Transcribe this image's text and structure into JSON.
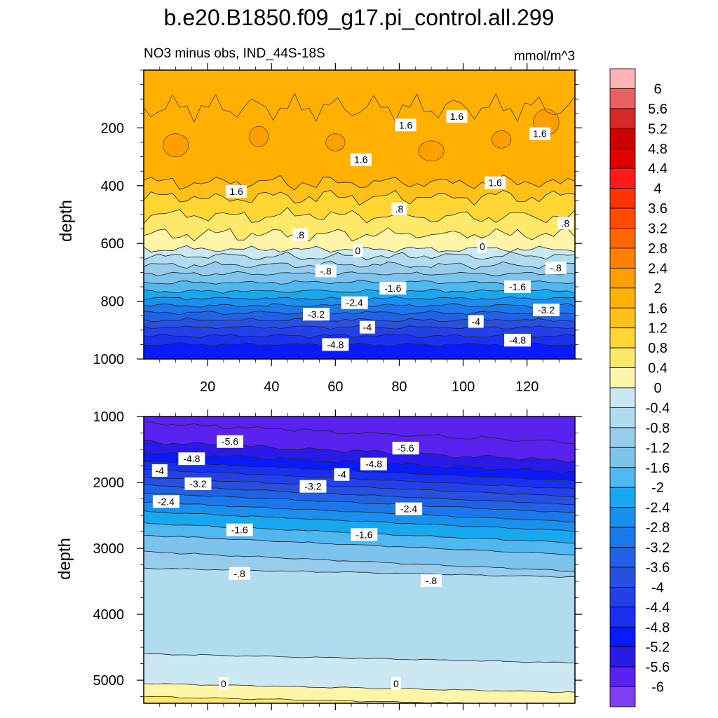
{
  "title": "b.e20.B1850.f09_g17.pi_control.all.299",
  "subtitle_left": "NO3 minus obs, IND_44S-18S",
  "subtitle_right": "mmol/m^3",
  "chart_data": [
    {
      "type": "heatmap",
      "panel": "upper",
      "ylabel": "depth",
      "xlabel": "",
      "xlim": [
        0,
        135
      ],
      "ylim": [
        1000,
        0
      ],
      "x_ticks": [
        "20",
        "40",
        "60",
        "80",
        "100",
        "120"
      ],
      "y_ticks": [
        "200",
        "400",
        "600",
        "800",
        "1000"
      ],
      "contour_levels_depth": [
        {
          "level": 1.6,
          "depth": 390
        },
        {
          "level": 1.2,
          "depth": 440
        },
        {
          "level": 0.8,
          "depth": 505
        },
        {
          "level": 0.4,
          "depth": 570
        },
        {
          "level": 0,
          "depth": 620
        },
        {
          "level": -0.4,
          "depth": 645
        },
        {
          "level": -0.8,
          "depth": 675
        },
        {
          "level": -1.2,
          "depth": 705
        },
        {
          "level": -1.6,
          "depth": 735
        },
        {
          "level": -2.0,
          "depth": 765
        },
        {
          "level": -2.4,
          "depth": 790
        },
        {
          "level": -2.8,
          "depth": 815
        },
        {
          "level": -3.2,
          "depth": 840
        },
        {
          "level": -3.6,
          "depth": 865
        },
        {
          "level": -4.0,
          "depth": 890
        },
        {
          "level": -4.4,
          "depth": 920
        },
        {
          "level": -4.8,
          "depth": 950
        }
      ],
      "labels": [
        {
          "text": "1.6",
          "x": 29,
          "depth": 420
        },
        {
          "text": "1.6",
          "x": 68,
          "depth": 310
        },
        {
          "text": "1.6",
          "x": 82,
          "depth": 190
        },
        {
          "text": "1.6",
          "x": 98,
          "depth": 160
        },
        {
          "text": "1.6",
          "x": 110,
          "depth": 390
        },
        {
          "text": "1.6",
          "x": 124,
          "depth": 220
        },
        {
          "text": ".8",
          "x": 49,
          "depth": 570
        },
        {
          "text": ".8",
          "x": 80,
          "depth": 480
        },
        {
          "text": ".8",
          "x": 132,
          "depth": 530
        },
        {
          "text": "0",
          "x": 67,
          "depth": 625
        },
        {
          "text": "0",
          "x": 106,
          "depth": 610
        },
        {
          "text": "-.8",
          "x": 57,
          "depth": 695
        },
        {
          "text": "-.8",
          "x": 129,
          "depth": 685
        },
        {
          "text": "-1.6",
          "x": 78,
          "depth": 755
        },
        {
          "text": "-1.6",
          "x": 117,
          "depth": 750
        },
        {
          "text": "-2.4",
          "x": 66,
          "depth": 805
        },
        {
          "text": "-3.2",
          "x": 54,
          "depth": 845
        },
        {
          "text": "-3.2",
          "x": 126,
          "depth": 830
        },
        {
          "text": "-4",
          "x": 70,
          "depth": 890
        },
        {
          "text": "-4",
          "x": 104,
          "depth": 870
        },
        {
          "text": "-4.8",
          "x": 60,
          "depth": 950
        },
        {
          "text": "-4.8",
          "x": 117,
          "depth": 935
        }
      ]
    },
    {
      "type": "heatmap",
      "panel": "lower",
      "ylabel": "depth",
      "xlabel": "",
      "xlim": [
        0,
        135
      ],
      "ylim": [
        5350,
        1000
      ],
      "y_ticks": [
        "1000",
        "2000",
        "3000",
        "4000",
        "5000"
      ],
      "contour_levels_depth": [
        {
          "level": -6.0,
          "depth": 1100
        },
        {
          "level": -5.6,
          "depth": 1380
        },
        {
          "level": -5.2,
          "depth": 1550
        },
        {
          "level": -4.8,
          "depth": 1680
        },
        {
          "level": -4.4,
          "depth": 1800
        },
        {
          "level": -4.0,
          "depth": 1920
        },
        {
          "level": -3.6,
          "depth": 2040
        },
        {
          "level": -3.2,
          "depth": 2160
        },
        {
          "level": -2.8,
          "depth": 2300
        },
        {
          "level": -2.4,
          "depth": 2440
        },
        {
          "level": -2.0,
          "depth": 2620
        },
        {
          "level": -1.6,
          "depth": 2800
        },
        {
          "level": -1.2,
          "depth": 3050
        },
        {
          "level": -0.8,
          "depth": 3300
        },
        {
          "level": -0.4,
          "depth": 4600
        },
        {
          "level": 0.0,
          "depth": 5050
        },
        {
          "level": 0.4,
          "depth": 5250
        }
      ],
      "labels": [
        {
          "text": "-5.6",
          "x": 27,
          "depth": 1380
        },
        {
          "text": "-5.6",
          "x": 82,
          "depth": 1480
        },
        {
          "text": "-4.8",
          "x": 15,
          "depth": 1640
        },
        {
          "text": "-4.8",
          "x": 72,
          "depth": 1720
        },
        {
          "text": "-4",
          "x": 5,
          "depth": 1820
        },
        {
          "text": "-4",
          "x": 62,
          "depth": 1880
        },
        {
          "text": "-3.2",
          "x": 17,
          "depth": 2020
        },
        {
          "text": "-3.2",
          "x": 53,
          "depth": 2060
        },
        {
          "text": "-2.4",
          "x": 7,
          "depth": 2290
        },
        {
          "text": "-2.4",
          "x": 83,
          "depth": 2400
        },
        {
          "text": "-1.6",
          "x": 30,
          "depth": 2720
        },
        {
          "text": "-1.6",
          "x": 69,
          "depth": 2790
        },
        {
          "text": "-.8",
          "x": 30,
          "depth": 3380
        },
        {
          "text": "-.8",
          "x": 90,
          "depth": 3490
        },
        {
          "text": "0",
          "x": 25,
          "depth": 5050
        },
        {
          "text": "0",
          "x": 79,
          "depth": 5050
        }
      ]
    }
  ],
  "colorbar": {
    "labels": [
      "6",
      "5.6",
      "5.2",
      "4.8",
      "4.4",
      "4",
      "3.6",
      "3.2",
      "2.8",
      "2.4",
      "2",
      "1.6",
      "1.2",
      "0.8",
      "0.4",
      "0",
      "-0.4",
      "-0.8",
      "-1.2",
      "-1.6",
      "-2",
      "-2.4",
      "-2.8",
      "-3.2",
      "-3.6",
      "-4",
      "-4.4",
      "-4.8",
      "-5.2",
      "-5.6",
      "-6"
    ],
    "colors": [
      "#ffb3b3",
      "#e86060",
      "#d72828",
      "#cc0000",
      "#e00000",
      "#ff1a1a",
      "#ff3300",
      "#ff4d00",
      "#ff6600",
      "#ff8000",
      "#ff9f00",
      "#ffb000",
      "#ffc01a",
      "#ffd633",
      "#ffe96b",
      "#fff5a8",
      "#cce8f2",
      "#b0dcf0",
      "#98ccec",
      "#7cc3ee",
      "#4fb8f0",
      "#18a8f0",
      "#1a90ee",
      "#1a78ec",
      "#1f62e6",
      "#2850e0",
      "#2440e8",
      "#1a30f0",
      "#0a1aff",
      "#2a1ae8",
      "#5a22ee",
      "#8040f0"
    ]
  }
}
